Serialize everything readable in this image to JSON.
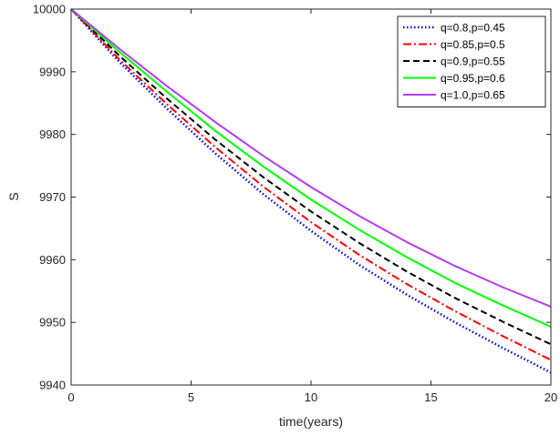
{
  "chart_data": {
    "type": "line",
    "title": "",
    "xlabel": "time(years)",
    "ylabel": "S",
    "xlim": [
      0,
      20
    ],
    "ylim": [
      9940,
      10000
    ],
    "xticks": [
      0,
      5,
      10,
      15,
      20
    ],
    "yticks": [
      9940,
      9950,
      9960,
      9970,
      9980,
      9990,
      10000
    ],
    "grid": false,
    "legend_position": "top-right",
    "series": [
      {
        "name": "q=0.8,p=0.45",
        "color": "#0000ff",
        "style": "dotted",
        "x": [
          0,
          2,
          4,
          6,
          8,
          10,
          12,
          14,
          16,
          18,
          20
        ],
        "y": [
          10000,
          9991.6,
          9984.1,
          9977.0,
          9970.5,
          9964.6,
          9959.2,
          9954.4,
          9950.0,
          9945.9,
          9942.0
        ]
      },
      {
        "name": "q=0.85,p=0.5",
        "color": "#ff0000",
        "style": "dashdot",
        "x": [
          0,
          2,
          4,
          6,
          8,
          10,
          12,
          14,
          16,
          18,
          20
        ],
        "y": [
          10000,
          9992.0,
          9984.8,
          9978.0,
          9971.7,
          9966.0,
          9960.8,
          9956.1,
          9951.8,
          9947.8,
          9944.0
        ]
      },
      {
        "name": "q=0.9,p=0.55",
        "color": "#000000",
        "style": "dashed",
        "x": [
          0,
          2,
          4,
          6,
          8,
          10,
          12,
          14,
          16,
          18,
          20
        ],
        "y": [
          10000,
          9992.6,
          9985.7,
          9979.2,
          9973.2,
          9967.7,
          9962.7,
          9958.1,
          9953.9,
          9950.1,
          9946.5
        ]
      },
      {
        "name": "q=0.95,p=0.6",
        "color": "#00ff00",
        "style": "solid",
        "x": [
          0,
          2,
          4,
          6,
          8,
          10,
          12,
          14,
          16,
          18,
          20
        ],
        "y": [
          10000,
          9993.2,
          9986.8,
          9980.6,
          9974.9,
          9969.6,
          9964.8,
          9960.4,
          9956.3,
          9952.7,
          9949.3
        ]
      },
      {
        "name": "q=1.0,p=0.65",
        "color": "#b43cf0",
        "style": "solid",
        "x": [
          0,
          2,
          4,
          6,
          8,
          10,
          12,
          14,
          16,
          18,
          20
        ],
        "y": [
          10000,
          9993.7,
          9987.7,
          9982.0,
          9976.6,
          9971.6,
          9967.0,
          9962.8,
          9959.0,
          9955.6,
          9952.5
        ]
      }
    ]
  }
}
